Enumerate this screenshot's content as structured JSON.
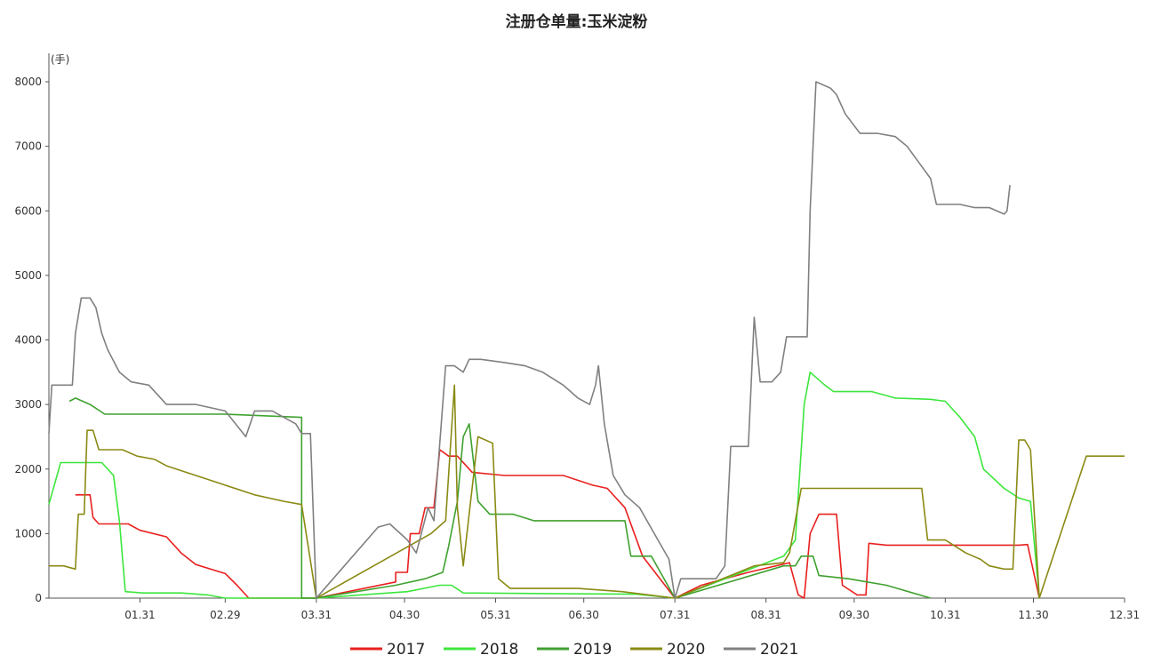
{
  "chart_data": {
    "type": "line",
    "title": "注册仓单量:玉米淀粉",
    "ylabel": "(手)",
    "xlabel": "",
    "ylim": [
      0,
      8000
    ],
    "y_ticks": [
      0,
      1000,
      2000,
      3000,
      4000,
      5000,
      6000,
      7000,
      8000
    ],
    "x_axis_kind": "day-of-year",
    "x_ticks": [
      {
        "label": "01.31",
        "day": 31
      },
      {
        "label": "02.29",
        "day": 60
      },
      {
        "label": "03.31",
        "day": 91
      },
      {
        "label": "04.30",
        "day": 121
      },
      {
        "label": "05.31",
        "day": 152
      },
      {
        "label": "06.30",
        "day": 182
      },
      {
        "label": "07.31",
        "day": 213
      },
      {
        "label": "08.31",
        "day": 244
      },
      {
        "label": "09.30",
        "day": 274
      },
      {
        "label": "10.31",
        "day": 305
      },
      {
        "label": "11.30",
        "day": 335
      },
      {
        "label": "12.31",
        "day": 366
      }
    ],
    "legend_position": "bottom",
    "grid": false,
    "series": [
      {
        "name": "2017",
        "color": "#e8201e",
        "points": [
          [
            9,
            1600
          ],
          [
            14,
            1600
          ],
          [
            15,
            1250
          ],
          [
            17,
            1150
          ],
          [
            27,
            1150
          ],
          [
            31,
            1050
          ],
          [
            40,
            950
          ],
          [
            45,
            700
          ],
          [
            50,
            520
          ],
          [
            60,
            380
          ],
          [
            64,
            200
          ],
          [
            68,
            0
          ],
          [
            91,
            0
          ],
          [
            118,
            250
          ],
          [
            118,
            400
          ],
          [
            122,
            400
          ],
          [
            123,
            1000
          ],
          [
            126,
            1000
          ],
          [
            128,
            1400
          ],
          [
            131,
            1400
          ],
          [
            133,
            2300
          ],
          [
            136,
            2200
          ],
          [
            139,
            2200
          ],
          [
            144,
            1950
          ],
          [
            155,
            1900
          ],
          [
            175,
            1900
          ],
          [
            185,
            1750
          ],
          [
            190,
            1700
          ],
          [
            196,
            1400
          ],
          [
            202,
            650
          ],
          [
            213,
            0
          ],
          [
            222,
            200
          ],
          [
            238,
            400
          ],
          [
            252,
            550
          ],
          [
            255,
            50
          ],
          [
            257,
            0
          ],
          [
            259,
            1000
          ],
          [
            262,
            1300
          ],
          [
            268,
            1300
          ],
          [
            270,
            200
          ],
          [
            275,
            50
          ],
          [
            278,
            50
          ],
          [
            279,
            850
          ],
          [
            285,
            820
          ],
          [
            330,
            820
          ],
          [
            333,
            830
          ],
          [
            337,
            0
          ]
        ]
      },
      {
        "name": "2018",
        "color": "#3de63d",
        "points": [
          [
            0,
            1450
          ],
          [
            4,
            2100
          ],
          [
            12,
            2100
          ],
          [
            18,
            2100
          ],
          [
            22,
            1900
          ],
          [
            24,
            1200
          ],
          [
            26,
            100
          ],
          [
            32,
            80
          ],
          [
            45,
            80
          ],
          [
            54,
            50
          ],
          [
            60,
            0
          ],
          [
            91,
            0
          ],
          [
            122,
            100
          ],
          [
            133,
            200
          ],
          [
            137,
            200
          ],
          [
            141,
            80
          ],
          [
            200,
            60
          ],
          [
            213,
            0
          ],
          [
            250,
            650
          ],
          [
            254,
            900
          ],
          [
            257,
            3000
          ],
          [
            259,
            3500
          ],
          [
            264,
            3300
          ],
          [
            267,
            3200
          ],
          [
            280,
            3200
          ],
          [
            288,
            3100
          ],
          [
            300,
            3080
          ],
          [
            305,
            3050
          ],
          [
            310,
            2800
          ],
          [
            315,
            2500
          ],
          [
            318,
            2000
          ],
          [
            325,
            1700
          ],
          [
            330,
            1550
          ],
          [
            334,
            1500
          ],
          [
            337,
            0
          ]
        ]
      },
      {
        "name": "2019",
        "color": "#3fa12f",
        "points": [
          [
            7,
            3050
          ],
          [
            9,
            3100
          ],
          [
            14,
            3000
          ],
          [
            19,
            2850
          ],
          [
            35,
            2850
          ],
          [
            60,
            2850
          ],
          [
            86,
            2800
          ],
          [
            86,
            0
          ],
          [
            91,
            0
          ],
          [
            118,
            200
          ],
          [
            128,
            300
          ],
          [
            134,
            400
          ],
          [
            136,
            800
          ],
          [
            139,
            1500
          ],
          [
            141,
            2500
          ],
          [
            143,
            2700
          ],
          [
            146,
            1500
          ],
          [
            150,
            1300
          ],
          [
            158,
            1300
          ],
          [
            165,
            1200
          ],
          [
            172,
            1200
          ],
          [
            183,
            1200
          ],
          [
            196,
            1200
          ],
          [
            198,
            650
          ],
          [
            205,
            650
          ],
          [
            213,
            0
          ],
          [
            250,
            500
          ],
          [
            254,
            500
          ],
          [
            256,
            650
          ],
          [
            260,
            650
          ],
          [
            262,
            350
          ],
          [
            272,
            300
          ],
          [
            285,
            200
          ],
          [
            300,
            0
          ]
        ]
      },
      {
        "name": "2020",
        "color": "#8a8a14",
        "points": [
          [
            0,
            500
          ],
          [
            5,
            500
          ],
          [
            9,
            450
          ],
          [
            10,
            1300
          ],
          [
            12,
            1300
          ],
          [
            13,
            2600
          ],
          [
            15,
            2600
          ],
          [
            17,
            2300
          ],
          [
            25,
            2300
          ],
          [
            30,
            2200
          ],
          [
            36,
            2150
          ],
          [
            40,
            2050
          ],
          [
            50,
            1900
          ],
          [
            60,
            1750
          ],
          [
            70,
            1600
          ],
          [
            80,
            1500
          ],
          [
            86,
            1450
          ],
          [
            91,
            0
          ],
          [
            130,
            1000
          ],
          [
            135,
            1200
          ],
          [
            138,
            3300
          ],
          [
            139,
            1400
          ],
          [
            141,
            500
          ],
          [
            146,
            2500
          ],
          [
            151,
            2400
          ],
          [
            153,
            300
          ],
          [
            157,
            150
          ],
          [
            170,
            150
          ],
          [
            180,
            150
          ],
          [
            195,
            100
          ],
          [
            213,
            0
          ],
          [
            240,
            500
          ],
          [
            250,
            550
          ],
          [
            252,
            700
          ],
          [
            256,
            1700
          ],
          [
            265,
            1700
          ],
          [
            275,
            1700
          ],
          [
            290,
            1700
          ],
          [
            297,
            1700
          ],
          [
            299,
            900
          ],
          [
            305,
            900
          ],
          [
            312,
            700
          ],
          [
            317,
            600
          ],
          [
            320,
            500
          ],
          [
            325,
            450
          ],
          [
            328,
            450
          ],
          [
            330,
            2450
          ],
          [
            332,
            2450
          ],
          [
            334,
            2300
          ],
          [
            337,
            0
          ],
          [
            353,
            2200
          ],
          [
            366,
            2200
          ]
        ]
      },
      {
        "name": "2021",
        "color": "#808080",
        "points": [
          [
            0,
            2550
          ],
          [
            1,
            3300
          ],
          [
            5,
            3300
          ],
          [
            8,
            3300
          ],
          [
            9,
            4100
          ],
          [
            11,
            4650
          ],
          [
            14,
            4650
          ],
          [
            16,
            4500
          ],
          [
            18,
            4100
          ],
          [
            20,
            3850
          ],
          [
            24,
            3500
          ],
          [
            28,
            3350
          ],
          [
            34,
            3300
          ],
          [
            40,
            3000
          ],
          [
            50,
            3000
          ],
          [
            60,
            2900
          ],
          [
            67,
            2500
          ],
          [
            70,
            2900
          ],
          [
            76,
            2900
          ],
          [
            84,
            2700
          ],
          [
            86,
            2550
          ],
          [
            89,
            2550
          ],
          [
            91,
            0
          ],
          [
            112,
            1100
          ],
          [
            116,
            1150
          ],
          [
            122,
            900
          ],
          [
            125,
            700
          ],
          [
            129,
            1400
          ],
          [
            131,
            1200
          ],
          [
            135,
            3600
          ],
          [
            138,
            3600
          ],
          [
            141,
            3500
          ],
          [
            143,
            3700
          ],
          [
            147,
            3700
          ],
          [
            155,
            3650
          ],
          [
            162,
            3600
          ],
          [
            168,
            3500
          ],
          [
            175,
            3300
          ],
          [
            180,
            3100
          ],
          [
            184,
            3000
          ],
          [
            186,
            3300
          ],
          [
            187,
            3600
          ],
          [
            189,
            2700
          ],
          [
            192,
            1900
          ],
          [
            196,
            1600
          ],
          [
            201,
            1400
          ],
          [
            206,
            1000
          ],
          [
            211,
            600
          ],
          [
            213,
            0
          ],
          [
            215,
            300
          ],
          [
            227,
            300
          ],
          [
            230,
            500
          ],
          [
            232,
            2350
          ],
          [
            238,
            2350
          ],
          [
            240,
            4350
          ],
          [
            242,
            3350
          ],
          [
            246,
            3350
          ],
          [
            249,
            3500
          ],
          [
            251,
            4050
          ],
          [
            258,
            4050
          ],
          [
            259,
            6000
          ],
          [
            261,
            8000
          ],
          [
            266,
            7900
          ],
          [
            268,
            7800
          ],
          [
            271,
            7500
          ],
          [
            276,
            7200
          ],
          [
            282,
            7200
          ],
          [
            288,
            7150
          ],
          [
            292,
            7000
          ],
          [
            296,
            6750
          ],
          [
            300,
            6500
          ],
          [
            302,
            6100
          ],
          [
            310,
            6100
          ],
          [
            315,
            6050
          ],
          [
            320,
            6050
          ],
          [
            325,
            5950
          ],
          [
            326,
            6000
          ],
          [
            327,
            6400
          ]
        ]
      }
    ]
  }
}
